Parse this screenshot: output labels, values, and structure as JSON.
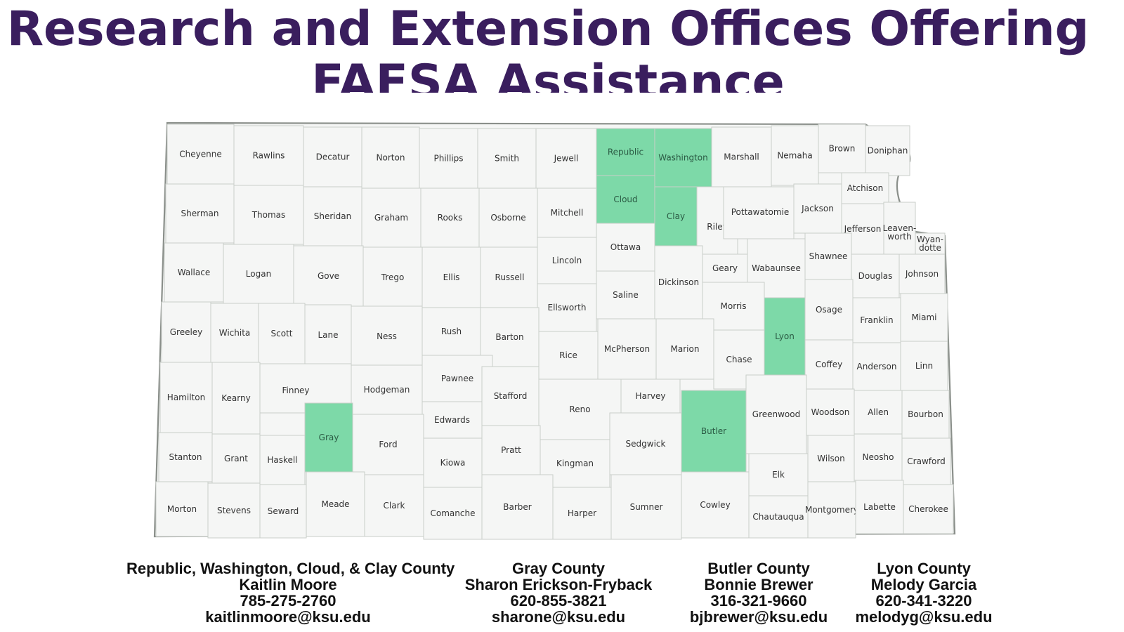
{
  "title": {
    "line1": "Research and Extension Offices Offering",
    "line2": "FAFSA Assistance"
  },
  "colors": {
    "title": "#3a1e5e",
    "highlight": "#7dd9a8",
    "county_fill": "#f5f6f5",
    "county_border": "#c9cec9",
    "state_border": "#8a8f8a"
  },
  "map": {
    "state": "Kansas",
    "highlighted_counties": [
      "Republic",
      "Washington",
      "Cloud",
      "Clay",
      "Gray",
      "Butler",
      "Lyon"
    ],
    "counties": [
      "Cheyenne",
      "Rawlins",
      "Decatur",
      "Norton",
      "Phillips",
      "Smith",
      "Jewell",
      "Republic",
      "Washington",
      "Marshall",
      "Nemaha",
      "Brown",
      "Doniphan",
      "Sherman",
      "Thomas",
      "Sheridan",
      "Graham",
      "Rooks",
      "Osborne",
      "Mitchell",
      "Cloud",
      "Clay",
      "Riley",
      "Pottawatomie",
      "Jackson",
      "Atchison",
      "Jefferson",
      "Leaven-worth",
      "Wyan-dotte",
      "Wallace",
      "Logan",
      "Gove",
      "Trego",
      "Ellis",
      "Russell",
      "Lincoln",
      "Ottawa",
      "Dickinson",
      "Geary",
      "Wabaunsee",
      "Shawnee",
      "Douglas",
      "Johnson",
      "Ellsworth",
      "Saline",
      "Morris",
      "Osage",
      "Franklin",
      "Miami",
      "Greeley",
      "Wichita",
      "Scott",
      "Lane",
      "Ness",
      "Rush",
      "Barton",
      "Rice",
      "McPherson",
      "Marion",
      "Chase",
      "Lyon",
      "Coffey",
      "Anderson",
      "Linn",
      "Pawnee",
      "Hamilton",
      "Kearny",
      "Finney",
      "Hodgeman",
      "Stafford",
      "Reno",
      "Harvey",
      "Butler",
      "Greenwood",
      "Woodson",
      "Allen",
      "Bourbon",
      "Edwards",
      "Gray",
      "Ford",
      "Kiowa",
      "Pratt",
      "Kingman",
      "Sedgwick",
      "Stanton",
      "Grant",
      "Haskell",
      "Elk",
      "Wilson",
      "Neosho",
      "Crawford",
      "Morton",
      "Stevens",
      "Seward",
      "Meade",
      "Clark",
      "Comanche",
      "Barber",
      "Harper",
      "Sumner",
      "Cowley",
      "Chautauqua",
      "Montgomery",
      "Labette",
      "Cherokee"
    ]
  },
  "contacts": [
    {
      "region": "Republic, Washington, Cloud, & Clay County",
      "name": "Kaitlin Moore",
      "phone": "785-275-2760",
      "email": "kaitlinmoore@ksu.edu"
    },
    {
      "region": "Gray County",
      "name": "Sharon Erickson-Fryback",
      "phone": "620-855-3821",
      "email": "sharone@ksu.edu"
    },
    {
      "region": "Butler County",
      "name": "Bonnie Brewer",
      "phone": "316-321-9660",
      "email": "bjbrewer@ksu.edu"
    },
    {
      "region": "Lyon County",
      "name": "Melody Garcia",
      "phone": "620-341-3220",
      "email": "melodyg@ksu.edu"
    }
  ]
}
